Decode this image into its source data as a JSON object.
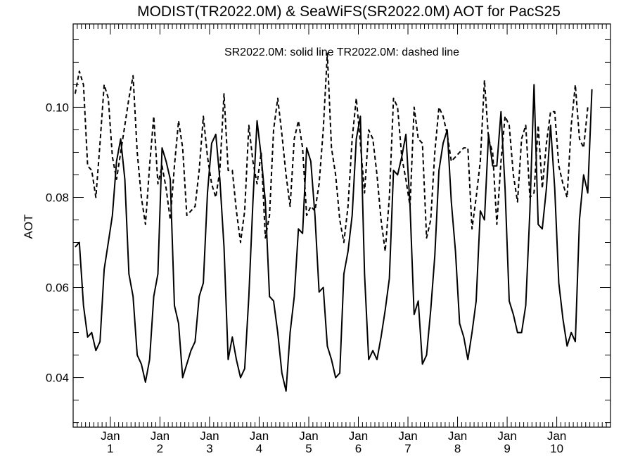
{
  "chart_data": {
    "type": "line",
    "title": "MODIST(TR2022.0M) & SeaWiFS(SR2022.0M)  AOT for PacS25",
    "annotation": "SR2022.0M: solid line   TR2022.0M: dashed line",
    "ylabel": "AOT",
    "xlabel": "",
    "xlim": [
      0,
      130
    ],
    "ylim": [
      0.029,
      0.1185
    ],
    "yticks": [
      0.04,
      0.06,
      0.08,
      0.1
    ],
    "ytick_labels": [
      "0.04",
      "0.06",
      "0.08",
      "0.10"
    ],
    "x_ticks": [
      {
        "x": 9,
        "month": "Jan",
        "year": "1"
      },
      {
        "x": 21,
        "month": "Jan",
        "year": "2"
      },
      {
        "x": 33,
        "month": "Jan",
        "year": "3"
      },
      {
        "x": 45,
        "month": "Jan",
        "year": "4"
      },
      {
        "x": 57,
        "month": "Jan",
        "year": "5"
      },
      {
        "x": 69,
        "month": "Jan",
        "year": "6"
      },
      {
        "x": 81,
        "month": "Jan",
        "year": "7"
      },
      {
        "x": 93,
        "month": "Jan",
        "year": "8"
      },
      {
        "x": 105,
        "month": "Jan",
        "year": "9"
      },
      {
        "x": 117,
        "month": "Jan",
        "year": "10"
      }
    ],
    "series": [
      {
        "name": "SR2022.0M",
        "style": "solid",
        "values": [
          0.069,
          0.07,
          0.056,
          0.049,
          0.05,
          0.046,
          0.048,
          0.064,
          0.07,
          0.076,
          0.088,
          0.093,
          0.084,
          0.063,
          0.058,
          0.045,
          0.043,
          0.039,
          0.044,
          0.058,
          0.063,
          0.091,
          0.088,
          0.084,
          0.056,
          0.052,
          0.04,
          0.043,
          0.046,
          0.048,
          0.058,
          0.061,
          0.081,
          0.092,
          0.094,
          0.084,
          0.069,
          0.044,
          0.049,
          0.044,
          0.04,
          0.042,
          0.058,
          0.079,
          0.097,
          0.089,
          0.079,
          0.058,
          0.057,
          0.05,
          0.041,
          0.037,
          0.05,
          0.058,
          0.073,
          0.072,
          0.091,
          0.088,
          0.076,
          0.059,
          0.06,
          0.047,
          0.044,
          0.04,
          0.041,
          0.063,
          0.068,
          0.076,
          0.093,
          0.098,
          0.063,
          0.044,
          0.046,
          0.044,
          0.049,
          0.055,
          0.062,
          0.086,
          0.085,
          0.089,
          0.094,
          0.078,
          0.054,
          0.057,
          0.043,
          0.045,
          0.055,
          0.067,
          0.086,
          0.092,
          0.095,
          0.079,
          0.068,
          0.052,
          0.049,
          0.044,
          0.05,
          0.057,
          0.077,
          0.075,
          0.094,
          0.087,
          0.087,
          0.099,
          0.082,
          0.057,
          0.054,
          0.05,
          0.05,
          0.056,
          0.077,
          0.105,
          0.074,
          0.073,
          0.082,
          0.096,
          0.082,
          0.061,
          0.053,
          0.047,
          0.05,
          0.048,
          0.075,
          0.085,
          0.081,
          0.104
        ]
      },
      {
        "name": "TR2022.0M",
        "style": "dashed",
        "values": [
          0.103,
          0.108,
          0.105,
          0.087,
          0.086,
          0.08,
          0.092,
          0.105,
          0.102,
          0.089,
          0.084,
          0.09,
          0.096,
          0.102,
          0.107,
          0.09,
          0.08,
          0.074,
          0.087,
          0.098,
          0.083,
          0.087,
          0.082,
          0.075,
          0.087,
          0.097,
          0.091,
          0.076,
          0.077,
          0.078,
          0.086,
          0.098,
          0.089,
          0.083,
          0.08,
          0.086,
          0.103,
          0.086,
          0.086,
          0.077,
          0.07,
          0.077,
          0.096,
          0.088,
          0.083,
          0.09,
          0.071,
          0.076,
          0.095,
          0.102,
          0.094,
          0.085,
          0.078,
          0.093,
          0.097,
          0.091,
          0.076,
          0.078,
          0.077,
          0.083,
          0.095,
          0.112,
          0.091,
          0.085,
          0.075,
          0.07,
          0.078,
          0.093,
          0.102,
          0.092,
          0.081,
          0.095,
          0.093,
          0.085,
          0.075,
          0.068,
          0.08,
          0.102,
          0.1,
          0.089,
          0.084,
          0.078,
          0.1,
          0.093,
          0.092,
          0.071,
          0.075,
          0.09,
          0.1,
          0.098,
          0.094,
          0.088,
          0.089,
          0.09,
          0.091,
          0.091,
          0.073,
          0.08,
          0.088,
          0.106,
          0.093,
          0.09,
          0.074,
          0.088,
          0.098,
          0.096,
          0.085,
          0.079,
          0.093,
          0.096,
          0.08,
          0.081,
          0.096,
          0.082,
          0.092,
          0.099,
          0.099,
          0.087,
          0.083,
          0.08,
          0.096,
          0.105,
          0.093,
          0.091,
          0.1
        ]
      }
    ]
  }
}
